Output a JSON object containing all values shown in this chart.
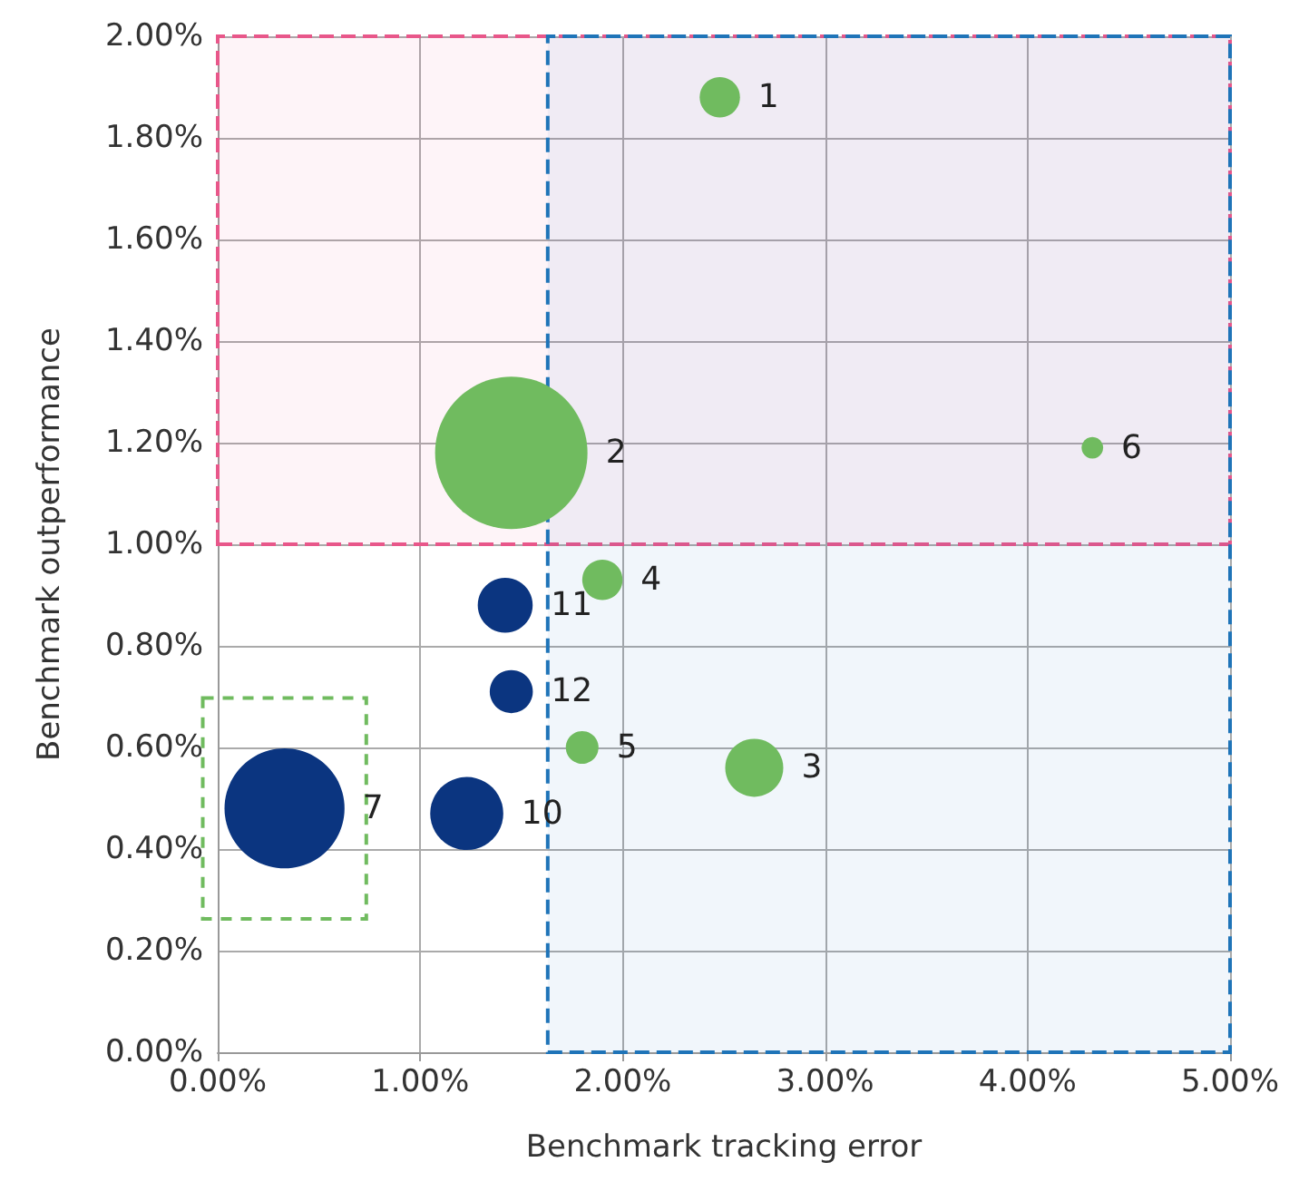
{
  "chart_data": {
    "type": "bubble",
    "xlabel": "Benchmark tracking error",
    "ylabel": "Benchmark outperformance",
    "xlim": [
      0,
      5
    ],
    "ylim": [
      0,
      2
    ],
    "xticks": [
      {
        "value": 0,
        "label": "0.00%"
      },
      {
        "value": 1,
        "label": "1.00%"
      },
      {
        "value": 2,
        "label": "2.00%"
      },
      {
        "value": 3,
        "label": "3.00%"
      },
      {
        "value": 4,
        "label": "4.00%"
      },
      {
        "value": 5,
        "label": "5.00%"
      }
    ],
    "yticks": [
      {
        "value": 0,
        "label": "0.00%"
      },
      {
        "value": 0.2,
        "label": "0.20%"
      },
      {
        "value": 0.4,
        "label": "0.40%"
      },
      {
        "value": 0.6,
        "label": "0.60%"
      },
      {
        "value": 0.8,
        "label": "0.80%"
      },
      {
        "value": 1,
        "label": "1.00%"
      },
      {
        "value": 1.2,
        "label": "1.20%"
      },
      {
        "value": 1.4,
        "label": "1.40%"
      },
      {
        "value": 1.6,
        "label": "1.60%"
      },
      {
        "value": 1.8,
        "label": "1.80%"
      },
      {
        "value": 2,
        "label": "2.00%"
      }
    ],
    "grid": true,
    "series": [
      {
        "color": "#70bb5f",
        "x": [
          2.48,
          1.45,
          2.65,
          1.9,
          1.8,
          4.32
        ],
        "values": [
          1.88,
          1.18,
          0.56,
          0.93,
          0.6,
          1.19
        ],
        "sizes": [
          0.07,
          1,
          0.145,
          0.07,
          0.046,
          0.02
        ]
      },
      {
        "color": "#0b3580",
        "x": [
          0.33,
          1.23,
          1.42,
          1.45
        ],
        "values": [
          0.48,
          0.47,
          0.88,
          0.71
        ],
        "sizes": [
          0.62,
          0.23,
          0.13,
          0.08
        ]
      }
    ],
    "bands": [
      {
        "axis": "y",
        "from": 1.0,
        "to": 2.0,
        "color": "#e8578a"
      },
      {
        "axis": "x",
        "from": 1.63,
        "to": 5.0,
        "color": "#1f74b8"
      }
    ],
    "annotations": [
      {
        "text": "1",
        "x": 2.48,
        "y": 1.88
      },
      {
        "text": "2",
        "x": 1.45,
        "y": 1.18
      },
      {
        "text": "3",
        "x": 2.65,
        "y": 0.56
      },
      {
        "text": "4",
        "x": 1.9,
        "y": 0.93
      },
      {
        "text": "5",
        "x": 1.8,
        "y": 0.6
      },
      {
        "text": "6",
        "x": 4.32,
        "y": 1.19
      },
      {
        "text": "7",
        "x": 0.33,
        "y": 0.48
      },
      {
        "text": "10",
        "x": 1.23,
        "y": 0.47
      },
      {
        "text": "11",
        "x": 1.42,
        "y": 0.88
      },
      {
        "text": "12",
        "x": 1.45,
        "y": 0.71
      }
    ]
  }
}
